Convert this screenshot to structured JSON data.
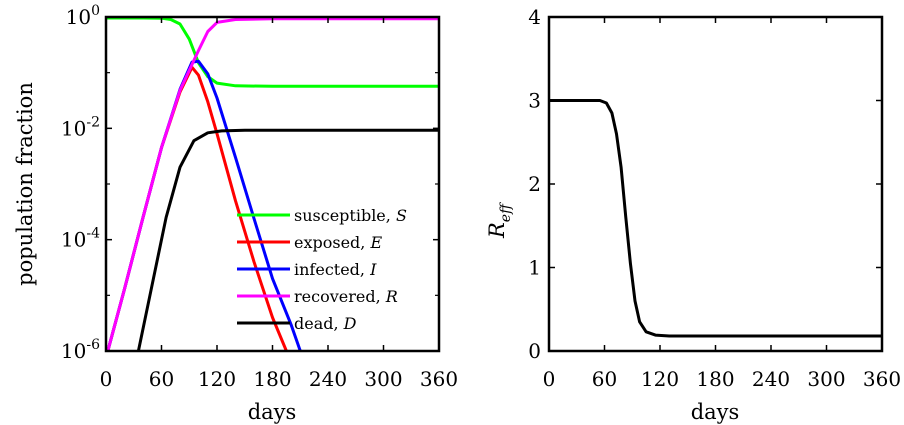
{
  "chart_data": [
    {
      "type": "line",
      "xlabel": "days",
      "ylabel": "population fraction",
      "yscale": "log",
      "xlim": [
        0,
        360
      ],
      "ylim": [
        1e-06,
        1
      ],
      "xticks": [
        "0",
        "60",
        "120",
        "180",
        "240",
        "300",
        "360"
      ],
      "yticks": [
        {
          "base": "10",
          "exp": "0"
        },
        {
          "base": "10",
          "exp": "-2"
        },
        {
          "base": "10",
          "exp": "-4"
        },
        {
          "base": "10",
          "exp": "-6"
        }
      ],
      "legend_position": "bottom-right",
      "series": [
        {
          "name": "susceptible,",
          "sym": "S",
          "color": "#00ff00",
          "points": [
            [
              0,
              0.96
            ],
            [
              40,
              0.96
            ],
            [
              60,
              0.95
            ],
            [
              70,
              0.9
            ],
            [
              80,
              0.75
            ],
            [
              90,
              0.4
            ],
            [
              100,
              0.15
            ],
            [
              110,
              0.085
            ],
            [
              120,
              0.065
            ],
            [
              140,
              0.058
            ],
            [
              180,
              0.057
            ],
            [
              360,
              0.057
            ]
          ]
        },
        {
          "name": "exposed,",
          "sym": "E",
          "color": "#ff0000",
          "points": [
            [
              2,
              1e-06
            ],
            [
              20,
              1.3e-05
            ],
            [
              40,
              0.00025
            ],
            [
              60,
              0.0045
            ],
            [
              80,
              0.045
            ],
            [
              93,
              0.125
            ],
            [
              100,
              0.09
            ],
            [
              110,
              0.03
            ],
            [
              120,
              0.008
            ],
            [
              140,
              0.0005
            ],
            [
              160,
              4e-05
            ],
            [
              180,
              4e-06
            ],
            [
              195,
              1e-06
            ]
          ]
        },
        {
          "name": "infected,",
          "sym": "I",
          "color": "#0000ff",
          "points": [
            [
              2,
              1e-06
            ],
            [
              20,
              1.3e-05
            ],
            [
              40,
              0.00025
            ],
            [
              60,
              0.0045
            ],
            [
              80,
              0.05
            ],
            [
              93,
              0.155
            ],
            [
              100,
              0.16
            ],
            [
              110,
              0.095
            ],
            [
              120,
              0.035
            ],
            [
              140,
              0.003
            ],
            [
              160,
              0.00024
            ],
            [
              180,
              2e-05
            ],
            [
              200,
              3e-06
            ],
            [
              210,
              1e-06
            ]
          ]
        },
        {
          "name": "recovered,",
          "sym": "R",
          "color": "#ff00ff",
          "points": [
            [
              2,
              1e-06
            ],
            [
              20,
              1.3e-05
            ],
            [
              40,
              0.00025
            ],
            [
              60,
              0.0045
            ],
            [
              80,
              0.048
            ],
            [
              93,
              0.14
            ],
            [
              100,
              0.25
            ],
            [
              110,
              0.55
            ],
            [
              120,
              0.8
            ],
            [
              140,
              0.9
            ],
            [
              180,
              0.93
            ],
            [
              360,
              0.93
            ]
          ]
        },
        {
          "name": "dead,",
          "sym": "D",
          "color": "#000000",
          "points": [
            [
              35,
              1e-06
            ],
            [
              50,
              1.6e-05
            ],
            [
              65,
              0.00025
            ],
            [
              80,
              0.002
            ],
            [
              95,
              0.006
            ],
            [
              110,
              0.0083
            ],
            [
              125,
              0.009
            ],
            [
              150,
              0.0092
            ],
            [
              360,
              0.0092
            ]
          ]
        }
      ]
    },
    {
      "type": "line",
      "xlabel": "days",
      "ylabel_base": "R",
      "ylabel_sub": "eff",
      "xlim": [
        0,
        360
      ],
      "ylim": [
        0,
        4
      ],
      "xticks": [
        "0",
        "60",
        "120",
        "180",
        "240",
        "300",
        "360"
      ],
      "yticks": [
        "0",
        "1",
        "2",
        "3",
        "4"
      ],
      "series": [
        {
          "color": "#000000",
          "points": [
            [
              0,
              3
            ],
            [
              55,
              3
            ],
            [
              62,
              2.97
            ],
            [
              68,
              2.85
            ],
            [
              73,
              2.6
            ],
            [
              78,
              2.2
            ],
            [
              83,
              1.6
            ],
            [
              88,
              1.05
            ],
            [
              93,
              0.6
            ],
            [
              98,
              0.35
            ],
            [
              105,
              0.23
            ],
            [
              115,
              0.19
            ],
            [
              130,
              0.18
            ],
            [
              360,
              0.18
            ]
          ]
        }
      ]
    }
  ]
}
